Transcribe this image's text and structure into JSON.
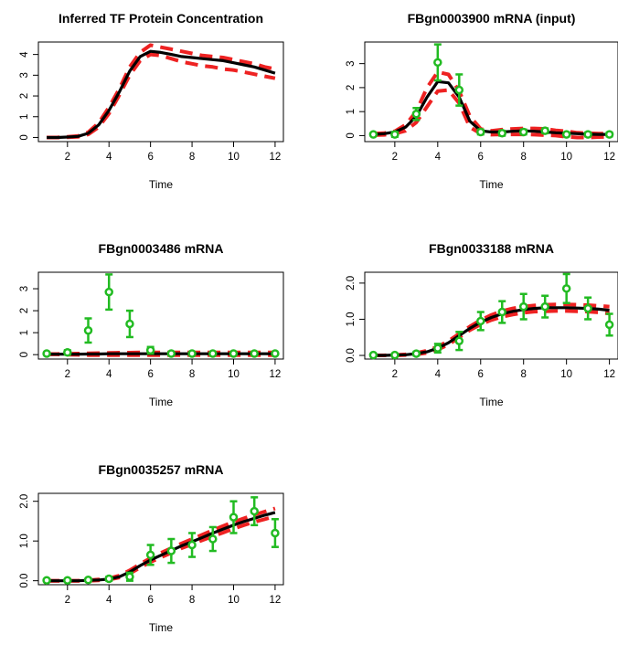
{
  "chart_data": [
    {
      "type": "line",
      "title": "Inferred TF Protein Concentration",
      "xlabel": "Time",
      "ylabel": "",
      "xlim": [
        0.6,
        12.4
      ],
      "ylim": [
        -0.2,
        4.6
      ],
      "xticks": [
        2,
        4,
        6,
        8,
        10,
        12
      ],
      "yticks": [
        0,
        1,
        2,
        3,
        4
      ],
      "yticklabels": [
        "0",
        "1",
        "2",
        "3",
        "4"
      ],
      "x": [
        1,
        1.5,
        2,
        2.5,
        3,
        3.5,
        4,
        4.5,
        5,
        5.5,
        6,
        6.5,
        7,
        7.5,
        8,
        8.5,
        9,
        9.5,
        10,
        10.5,
        11,
        11.5,
        12
      ],
      "series": [
        {
          "role": "mean",
          "color": "#000000",
          "values": [
            0,
            0,
            0.02,
            0.05,
            0.2,
            0.6,
            1.3,
            2.2,
            3.2,
            3.9,
            4.15,
            4.1,
            4.0,
            3.9,
            3.85,
            3.8,
            3.75,
            3.7,
            3.6,
            3.5,
            3.4,
            3.25,
            3.1
          ]
        },
        {
          "role": "upper",
          "color": "#ee2222",
          "values": [
            0,
            0,
            0.03,
            0.07,
            0.25,
            0.7,
            1.45,
            2.35,
            3.4,
            4.1,
            4.45,
            4.35,
            4.25,
            4.15,
            4.05,
            3.95,
            3.9,
            3.85,
            3.75,
            3.65,
            3.55,
            3.4,
            3.3
          ]
        },
        {
          "role": "lower",
          "color": "#ee2222",
          "values": [
            0,
            0,
            0.01,
            0.03,
            0.15,
            0.5,
            1.15,
            2.05,
            3.0,
            3.7,
            4.0,
            3.95,
            3.8,
            3.65,
            3.55,
            3.45,
            3.4,
            3.3,
            3.25,
            3.15,
            3.05,
            2.95,
            2.85
          ]
        }
      ]
    },
    {
      "type": "line",
      "title": "FBgn0003900 mRNA (input)",
      "xlabel": "Time",
      "ylabel": "",
      "xlim": [
        0.6,
        12.4
      ],
      "ylim": [
        -0.25,
        3.9
      ],
      "xticks": [
        2,
        4,
        6,
        8,
        10,
        12
      ],
      "yticks": [
        0,
        1,
        2,
        3
      ],
      "yticklabels": [
        "0",
        "1",
        "2",
        "3"
      ],
      "x": [
        1,
        1.5,
        2,
        2.5,
        3,
        3.5,
        4,
        4.5,
        5,
        5.5,
        6,
        6.5,
        7,
        7.5,
        8,
        8.5,
        9,
        9.5,
        10,
        10.5,
        11,
        11.5,
        12
      ],
      "series": [
        {
          "role": "mean",
          "color": "#000000",
          "values": [
            0.05,
            0.08,
            0.15,
            0.35,
            0.8,
            1.6,
            2.25,
            2.2,
            1.6,
            0.6,
            0.2,
            0.15,
            0.15,
            0.18,
            0.2,
            0.18,
            0.15,
            0.12,
            0.1,
            0.08,
            0.06,
            0.05,
            0.05
          ]
        },
        {
          "role": "upper",
          "color": "#ee2222",
          "values": [
            0.08,
            0.1,
            0.18,
            0.45,
            1.0,
            2.0,
            2.65,
            2.55,
            1.85,
            0.8,
            0.28,
            0.2,
            0.25,
            0.28,
            0.3,
            0.3,
            0.28,
            0.22,
            0.18,
            0.12,
            0.1,
            0.08,
            0.08
          ]
        },
        {
          "role": "lower",
          "color": "#ee2222",
          "values": [
            0.02,
            0.03,
            0.08,
            0.2,
            0.55,
            1.2,
            1.85,
            1.9,
            1.35,
            0.35,
            0.08,
            0.04,
            0.05,
            0.05,
            0.05,
            0.04,
            0.02,
            0,
            -0.05,
            -0.08,
            -0.08,
            -0.06,
            -0.05
          ]
        }
      ],
      "points": {
        "color": "#22bb22",
        "x": [
          1,
          2,
          3,
          4,
          5,
          6,
          7,
          8,
          9,
          10,
          11,
          12
        ],
        "y": [
          0.05,
          0.05,
          0.9,
          3.05,
          1.9,
          0.15,
          0.1,
          0.15,
          0.2,
          0.05,
          0.05,
          0.05
        ],
        "err": [
          0.05,
          0.1,
          0.25,
          0.75,
          0.65,
          0.1,
          0.1,
          0.1,
          0.1,
          0.08,
          0.08,
          0.08
        ]
      }
    },
    {
      "type": "line",
      "title": "FBgn0003486 mRNA",
      "xlabel": "Time",
      "ylabel": "",
      "xlim": [
        0.6,
        12.4
      ],
      "ylim": [
        -0.2,
        3.75
      ],
      "xticks": [
        2,
        4,
        6,
        8,
        10,
        12
      ],
      "yticks": [
        0,
        1,
        2,
        3
      ],
      "yticklabels": [
        "0",
        "1",
        "2",
        "3"
      ],
      "x": [
        1,
        1.5,
        2,
        2.5,
        3,
        3.5,
        4,
        4.5,
        5,
        5.5,
        6,
        6.5,
        7,
        7.5,
        8,
        8.5,
        9,
        9.5,
        10,
        10.5,
        11,
        11.5,
        12
      ],
      "series": [
        {
          "role": "mean",
          "color": "#000000",
          "values": [
            0.02,
            0.02,
            0.02,
            0.02,
            0.03,
            0.03,
            0.04,
            0.04,
            0.04,
            0.04,
            0.04,
            0.04,
            0.04,
            0.04,
            0.04,
            0.04,
            0.04,
            0.04,
            0.04,
            0.04,
            0.04,
            0.04,
            0.04
          ]
        },
        {
          "role": "upper",
          "color": "#ee2222",
          "values": [
            0.03,
            0.03,
            0.04,
            0.05,
            0.06,
            0.07,
            0.08,
            0.09,
            0.09,
            0.1,
            0.1,
            0.1,
            0.1,
            0.1,
            0.1,
            0.1,
            0.1,
            0.1,
            0.1,
            0.1,
            0.1,
            0.1,
            0.1
          ]
        },
        {
          "role": "lower",
          "color": "#ee2222",
          "values": [
            0.01,
            0.01,
            0,
            -0.01,
            -0.02,
            -0.02,
            -0.02,
            -0.02,
            -0.02,
            -0.02,
            -0.02,
            -0.02,
            -0.02,
            -0.02,
            -0.02,
            -0.02,
            -0.02,
            -0.02,
            -0.02,
            -0.02,
            -0.02,
            -0.02,
            -0.02
          ]
        }
      ],
      "points": {
        "color": "#22bb22",
        "x": [
          1,
          2,
          3,
          4,
          5,
          6,
          7,
          8,
          9,
          10,
          11,
          12
        ],
        "y": [
          0.05,
          0.1,
          1.1,
          2.85,
          1.4,
          0.2,
          0.05,
          0.05,
          0.05,
          0.05,
          0.05,
          0.05
        ],
        "err": [
          0.05,
          0.1,
          0.55,
          0.8,
          0.6,
          0.15,
          0.05,
          0.05,
          0.05,
          0.05,
          0.05,
          0.05
        ]
      }
    },
    {
      "type": "line",
      "title": "FBgn0033188 mRNA",
      "xlabel": "Time",
      "ylabel": "",
      "xlim": [
        0.6,
        12.4
      ],
      "ylim": [
        -0.1,
        2.3
      ],
      "xticks": [
        2,
        4,
        6,
        8,
        10,
        12
      ],
      "yticks": [
        0,
        1,
        2
      ],
      "yticklabels": [
        "0.0",
        "1.0",
        "2.0"
      ],
      "x": [
        1,
        1.5,
        2,
        2.5,
        3,
        3.5,
        4,
        4.5,
        5,
        5.5,
        6,
        6.5,
        7,
        7.5,
        8,
        8.5,
        9,
        9.5,
        10,
        10.5,
        11,
        11.5,
        12
      ],
      "series": [
        {
          "role": "mean",
          "color": "#000000",
          "values": [
            0,
            0,
            0.01,
            0.02,
            0.05,
            0.1,
            0.2,
            0.35,
            0.55,
            0.75,
            0.92,
            1.05,
            1.15,
            1.22,
            1.27,
            1.3,
            1.32,
            1.32,
            1.32,
            1.31,
            1.3,
            1.28,
            1.25
          ]
        },
        {
          "role": "upper",
          "color": "#ee2222",
          "values": [
            0,
            0,
            0.01,
            0.03,
            0.07,
            0.13,
            0.24,
            0.4,
            0.6,
            0.8,
            0.98,
            1.12,
            1.23,
            1.3,
            1.35,
            1.38,
            1.4,
            1.41,
            1.41,
            1.4,
            1.39,
            1.37,
            1.35
          ]
        },
        {
          "role": "lower",
          "color": "#ee2222",
          "values": [
            0,
            0,
            0,
            0.01,
            0.03,
            0.07,
            0.16,
            0.3,
            0.5,
            0.7,
            0.86,
            0.98,
            1.07,
            1.13,
            1.18,
            1.21,
            1.22,
            1.23,
            1.23,
            1.22,
            1.21,
            1.19,
            1.16
          ]
        }
      ],
      "points": {
        "color": "#22bb22",
        "x": [
          1,
          2,
          3,
          4,
          5,
          6,
          7,
          8,
          9,
          10,
          11,
          12
        ],
        "y": [
          0.01,
          0.01,
          0.05,
          0.2,
          0.4,
          0.95,
          1.2,
          1.35,
          1.35,
          1.85,
          1.3,
          0.85
        ],
        "err": [
          0.02,
          0.02,
          0.05,
          0.12,
          0.25,
          0.25,
          0.3,
          0.35,
          0.3,
          0.4,
          0.3,
          0.3
        ]
      }
    },
    {
      "type": "line",
      "title": "FBgn0035257 mRNA",
      "xlabel": "Time",
      "ylabel": "",
      "xlim": [
        0.6,
        12.4
      ],
      "ylim": [
        -0.1,
        2.2
      ],
      "xticks": [
        2,
        4,
        6,
        8,
        10,
        12
      ],
      "yticks": [
        0,
        1,
        2
      ],
      "yticklabels": [
        "0.0",
        "1.0",
        "2.0"
      ],
      "x": [
        1,
        1.5,
        2,
        2.5,
        3,
        3.5,
        4,
        4.5,
        5,
        5.5,
        6,
        6.5,
        7,
        7.5,
        8,
        8.5,
        9,
        9.5,
        10,
        10.5,
        11,
        11.5,
        12
      ],
      "series": [
        {
          "role": "mean",
          "color": "#000000",
          "values": [
            0,
            0,
            0,
            0,
            0.01,
            0.02,
            0.04,
            0.1,
            0.22,
            0.38,
            0.52,
            0.64,
            0.76,
            0.88,
            0.98,
            1.09,
            1.2,
            1.3,
            1.4,
            1.49,
            1.57,
            1.65,
            1.72
          ]
        },
        {
          "role": "upper",
          "color": "#ee2222",
          "values": [
            0,
            0,
            0,
            0,
            0.01,
            0.03,
            0.06,
            0.13,
            0.26,
            0.42,
            0.57,
            0.7,
            0.82,
            0.94,
            1.05,
            1.16,
            1.27,
            1.38,
            1.48,
            1.57,
            1.66,
            1.74,
            1.82
          ]
        },
        {
          "role": "lower",
          "color": "#ee2222",
          "values": [
            0,
            0,
            0,
            0,
            0,
            0.01,
            0.03,
            0.08,
            0.18,
            0.33,
            0.47,
            0.59,
            0.7,
            0.82,
            0.92,
            1.02,
            1.12,
            1.21,
            1.31,
            1.4,
            1.48,
            1.55,
            1.62
          ]
        }
      ],
      "points": {
        "color": "#22bb22",
        "x": [
          1,
          2,
          3,
          4,
          5,
          6,
          7,
          8,
          9,
          10,
          11,
          12
        ],
        "y": [
          0.01,
          0.01,
          0.02,
          0.05,
          0.1,
          0.65,
          0.75,
          0.9,
          1.05,
          1.6,
          1.75,
          1.2
        ],
        "err": [
          0.02,
          0.02,
          0.03,
          0.05,
          0.1,
          0.25,
          0.3,
          0.3,
          0.3,
          0.4,
          0.35,
          0.35
        ]
      }
    }
  ]
}
